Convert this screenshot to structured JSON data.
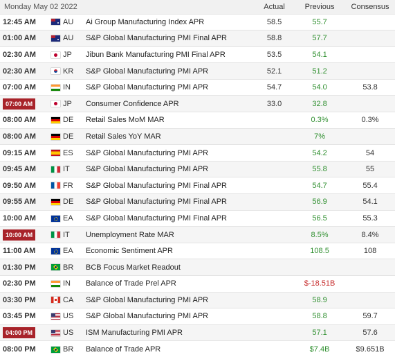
{
  "header": {
    "date": "Monday May 02 2022",
    "actual_label": "Actual",
    "previous_label": "Previous",
    "consensus_label": "Consensus"
  },
  "rows": [
    {
      "time": "12:45 AM",
      "country": "AU",
      "flag": "australia-flag-icon",
      "event": "Ai Group Manufacturing Index APR",
      "actual": "58.5",
      "previous": "55.7",
      "consensus": "",
      "highlight": false
    },
    {
      "time": "01:00 AM",
      "country": "AU",
      "flag": "australia-flag-icon",
      "event": "S&P Global Manufacturing PMI Final APR",
      "actual": "58.8",
      "previous": "57.7",
      "consensus": "",
      "highlight": false
    },
    {
      "time": "02:30 AM",
      "country": "JP",
      "flag": "japan-flag-icon",
      "event": "Jibun Bank Manufacturing PMI Final APR",
      "actual": "53.5",
      "previous": "54.1",
      "consensus": "",
      "highlight": false
    },
    {
      "time": "02:30 AM",
      "country": "KR",
      "flag": "south-korea-flag-icon",
      "event": "S&P Global Manufacturing PMI APR",
      "actual": "52.1",
      "previous": "51.2",
      "consensus": "",
      "highlight": false
    },
    {
      "time": "07:00 AM",
      "country": "IN",
      "flag": "india-flag-icon",
      "event": "S&P Global Manufacturing PMI APR",
      "actual": "54.7",
      "previous": "54.0",
      "consensus": "53.8",
      "highlight": false
    },
    {
      "time": "07:00 AM",
      "country": "JP",
      "flag": "japan-flag-icon",
      "event": "Consumer Confidence APR",
      "actual": "33.0",
      "previous": "32.8",
      "consensus": "",
      "highlight": true
    },
    {
      "time": "08:00 AM",
      "country": "DE",
      "flag": "germany-flag-icon",
      "event": "Retail Sales MoM MAR",
      "actual": "",
      "previous": "0.3%",
      "consensus": "0.3%",
      "highlight": false
    },
    {
      "time": "08:00 AM",
      "country": "DE",
      "flag": "germany-flag-icon",
      "event": "Retail Sales YoY MAR",
      "actual": "",
      "previous": "7%",
      "consensus": "",
      "highlight": false
    },
    {
      "time": "09:15 AM",
      "country": "ES",
      "flag": "spain-flag-icon",
      "event": "S&P Global Manufacturing PMI APR",
      "actual": "",
      "previous": "54.2",
      "consensus": "54",
      "highlight": false
    },
    {
      "time": "09:45 AM",
      "country": "IT",
      "flag": "italy-flag-icon",
      "event": "S&P Global Manufacturing PMI APR",
      "actual": "",
      "previous": "55.8",
      "consensus": "55",
      "highlight": false
    },
    {
      "time": "09:50 AM",
      "country": "FR",
      "flag": "france-flag-icon",
      "event": "S&P Global Manufacturing PMI Final APR",
      "actual": "",
      "previous": "54.7",
      "consensus": "55.4",
      "highlight": false
    },
    {
      "time": "09:55 AM",
      "country": "DE",
      "flag": "germany-flag-icon",
      "event": "S&P Global Manufacturing PMI Final APR",
      "actual": "",
      "previous": "56.9",
      "consensus": "54.1",
      "highlight": false
    },
    {
      "time": "10:00 AM",
      "country": "EA",
      "flag": "euro-area-flag-icon",
      "event": "S&P Global Manufacturing PMI Final APR",
      "actual": "",
      "previous": "56.5",
      "consensus": "55.3",
      "highlight": false
    },
    {
      "time": "10:00 AM",
      "country": "IT",
      "flag": "italy-flag-icon",
      "event": "Unemployment Rate MAR",
      "actual": "",
      "previous": "8.5%",
      "consensus": "8.4%",
      "highlight": true
    },
    {
      "time": "11:00 AM",
      "country": "EA",
      "flag": "euro-area-flag-icon",
      "event": "Economic Sentiment APR",
      "actual": "",
      "previous": "108.5",
      "consensus": "108",
      "highlight": false
    },
    {
      "time": "01:30 PM",
      "country": "BR",
      "flag": "brazil-flag-icon",
      "event": "BCB Focus Market Readout",
      "actual": "",
      "previous": "",
      "consensus": "",
      "highlight": false
    },
    {
      "time": "02:30 PM",
      "country": "IN",
      "flag": "india-flag-icon",
      "event": "Balance of Trade Prel APR",
      "actual": "",
      "previous": "$-18.51B",
      "consensus": "",
      "highlight": false,
      "prev_negative": true
    },
    {
      "time": "03:30 PM",
      "country": "CA",
      "flag": "canada-flag-icon",
      "event": "S&P Global Manufacturing PMI APR",
      "actual": "",
      "previous": "58.9",
      "consensus": "",
      "highlight": false
    },
    {
      "time": "03:45 PM",
      "country": "US",
      "flag": "usa-flag-icon",
      "event": "S&P Global Manufacturing PMI APR",
      "actual": "",
      "previous": "58.8",
      "consensus": "59.7",
      "highlight": false
    },
    {
      "time": "04:00 PM",
      "country": "US",
      "flag": "usa-flag-icon",
      "event": "ISM Manufacturing PMI APR",
      "actual": "",
      "previous": "57.1",
      "consensus": "57.6",
      "highlight": true
    },
    {
      "time": "08:00 PM",
      "country": "BR",
      "flag": "brazil-flag-icon",
      "event": "Balance of Trade APR",
      "actual": "",
      "previous": "$7.4B",
      "consensus": "$9.651B",
      "highlight": false
    }
  ],
  "colors": {
    "positive": "#2f8f2f",
    "negative": "#c62828",
    "highlight_bg": "#a8232a"
  }
}
